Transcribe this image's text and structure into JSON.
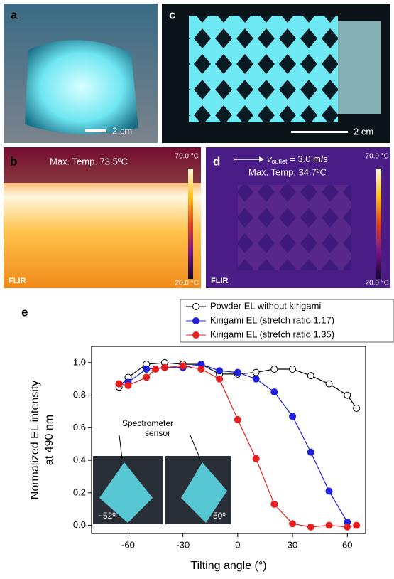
{
  "panels": {
    "a": {
      "label": "a",
      "scale": "2 cm"
    },
    "b": {
      "label": "b",
      "max_temp": "Max. Temp. 73.5ºC",
      "cbar_max": "70.0 °C",
      "cbar_min": "20.0 °C",
      "logo": "FLIR"
    },
    "c": {
      "label": "c",
      "scale": "2 cm"
    },
    "d": {
      "label": "d",
      "velocity": {
        "symbol": "v",
        "subscript": "outlet",
        "text": " = 3.0 m/s"
      },
      "max_temp": "Max. Temp. 34.7ºC",
      "cbar_max": "70.0 °C",
      "cbar_min": "20.0 °C",
      "logo": "FLIR"
    },
    "e": {
      "label": "e",
      "inset_title": [
        "Spectrometer",
        "sensor"
      ],
      "inset_left": "−52º",
      "inset_right": "50º"
    }
  },
  "chart_data": {
    "type": "line",
    "xlabel": "Tilting angle (°)",
    "ylabel": [
      "Normalized EL intensity",
      "at 490 nm"
    ],
    "xlim": [
      -80,
      70
    ],
    "ylim": [
      -0.05,
      1.1
    ],
    "xticks": [
      -60,
      -30,
      0,
      30,
      60
    ],
    "yticks": [
      {
        "value": 0,
        "label": "0.0"
      },
      {
        "value": 0.2,
        "label": "0.2"
      },
      {
        "value": 0.4,
        "label": "0.4"
      },
      {
        "value": 0.6,
        "label": "0.6"
      },
      {
        "value": 0.8,
        "label": "0.8"
      },
      {
        "value": 1,
        "label": "1.0"
      }
    ],
    "series": [
      {
        "name": "Powder EL without kirigami",
        "color": "#000000",
        "marker_filled": false,
        "x": [
          -65,
          -60,
          -50,
          -40,
          -30,
          -20,
          -10,
          0,
          10,
          20,
          30,
          40,
          50,
          60,
          65
        ],
        "values": [
          0.85,
          0.91,
          0.99,
          1.0,
          0.99,
          0.99,
          0.93,
          0.93,
          0.94,
          0.96,
          0.96,
          0.92,
          0.87,
          0.8,
          0.72
        ]
      },
      {
        "name": "Kirigami EL (stretch ratio 1.17)",
        "color": "#1f1fe0",
        "marker_filled": true,
        "x": [
          -65,
          -60,
          -50,
          -40,
          -30,
          -20,
          -10,
          0,
          10,
          20,
          30,
          40,
          50,
          60
        ],
        "values": [
          0.87,
          0.88,
          0.96,
          0.97,
          0.97,
          0.99,
          0.95,
          0.94,
          0.9,
          0.82,
          0.67,
          0.45,
          0.21,
          0.02
        ]
      },
      {
        "name": "Kirigami EL (stretch ratio 1.35)",
        "color": "#e81e1e",
        "marker_filled": true,
        "x": [
          -65,
          -60,
          -50,
          -45,
          -40,
          -30,
          -20,
          -10,
          0,
          10,
          20,
          30,
          40,
          50,
          60,
          65
        ],
        "values": [
          0.87,
          0.86,
          0.91,
          0.96,
          0.97,
          0.98,
          0.96,
          0.9,
          0.65,
          0.41,
          0.13,
          0.01,
          -0.01,
          0.0,
          -0.01,
          0.0
        ]
      }
    ]
  }
}
